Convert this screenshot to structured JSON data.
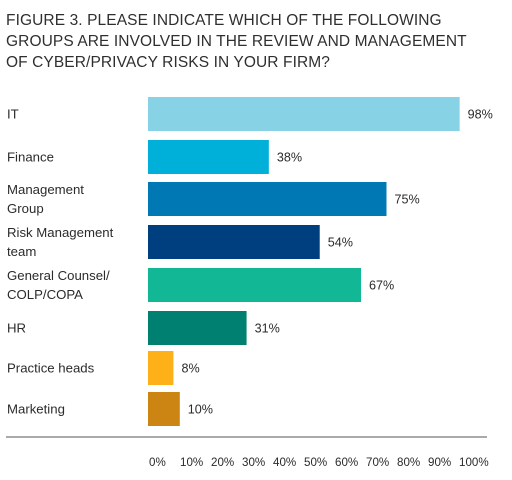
{
  "chart_data": {
    "type": "bar",
    "orientation": "horizontal",
    "title_lines": [
      "FIGURE 3. PLEASE INDICATE WHICH OF THE FOLLOWING",
      "GROUPS ARE INVOLVED IN THE REVIEW AND MANAGEMENT",
      "OF CYBER/PRIVACY RISKS IN YOUR FIRM?"
    ],
    "categories": [
      [
        "IT"
      ],
      [
        "Finance"
      ],
      [
        "Management",
        "Group"
      ],
      [
        "Risk Management",
        "team"
      ],
      [
        "General Counsel/",
        "COLP/COPA"
      ],
      [
        "HR"
      ],
      [
        "Practice heads"
      ],
      [
        "Marketing"
      ]
    ],
    "values": [
      98,
      38,
      75,
      54,
      67,
      31,
      8,
      10
    ],
    "value_labels": [
      "98%",
      "38%",
      "75%",
      "54%",
      "67%",
      "31%",
      "8%",
      "10%"
    ],
    "colors": [
      "#88d2e6",
      "#00b0d8",
      "#0078b4",
      "#003f7f",
      "#12b896",
      "#008070",
      "#fdb018",
      "#cc8413"
    ],
    "xlim": [
      0,
      100
    ],
    "xticks": [
      "0%",
      "10%",
      "20%",
      "30%",
      "40%",
      "50%",
      "60%",
      "70%",
      "80%",
      "90%",
      "100%"
    ],
    "grid": false,
    "legend": "none"
  }
}
